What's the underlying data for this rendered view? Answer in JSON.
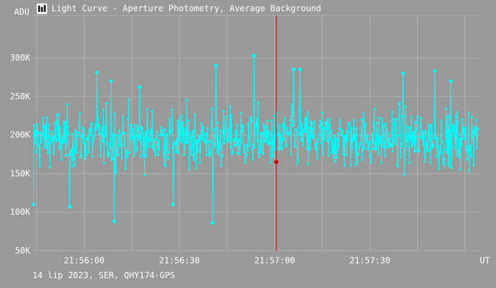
{
  "window": {
    "title": "Light Curve - Aperture Photometry, Average Background",
    "footer": "14 lip 2023, SER, QHY174-GPS",
    "icon": "app-logo-icon"
  },
  "colors": {
    "background": "#999999",
    "grid": "#b4b4b4",
    "series": "#00ffff",
    "cursor": "#cc0000",
    "text": "#ffffff"
  },
  "chart_data": {
    "type": "line",
    "title": "Light Curve - Aperture Photometry, Average Background",
    "ylabel": "ADU",
    "xlabel": "UT",
    "x_tick_labels": [
      "21:56:00",
      "21:56:30",
      "21:57:00",
      "21:57:30"
    ],
    "x_tick_seconds": [
      0,
      30,
      60,
      90
    ],
    "y_tick_labels": [
      "50K",
      "100K",
      "150K",
      "200K",
      "250K",
      "300K"
    ],
    "y_tick_values": [
      50000,
      100000,
      150000,
      200000,
      250000,
      300000
    ],
    "xlim_seconds_from_21_56_00": [
      -16.3,
      124.4
    ],
    "ylim": [
      50000,
      355000
    ],
    "grid": true,
    "cursor": {
      "time_seconds_from_21_56_00": 60.5,
      "value": 165000
    },
    "series": [
      {
        "marker": "dot",
        "sample_interval_seconds": 0.2,
        "summary": {
          "count": 700,
          "mean": 195000,
          "min": 85000,
          "max": 303000
        },
        "highlighted_points": [
          {
            "t": -16.0,
            "v": 110000
          },
          {
            "t": -4.5,
            "v": 107000
          },
          {
            "t": 4.0,
            "v": 281000
          },
          {
            "t": 8.5,
            "v": 270000
          },
          {
            "t": 9.5,
            "v": 88000
          },
          {
            "t": 17.5,
            "v": 262000
          },
          {
            "t": 28.0,
            "v": 110000
          },
          {
            "t": 40.5,
            "v": 86000
          },
          {
            "t": 41.5,
            "v": 290000
          },
          {
            "t": 53.5,
            "v": 303000
          },
          {
            "t": 66.0,
            "v": 285000
          },
          {
            "t": 68.0,
            "v": 285000
          },
          {
            "t": 100.5,
            "v": 280000
          },
          {
            "t": 115.5,
            "v": 270000
          },
          {
            "t": 110.5,
            "v": 283000
          }
        ]
      }
    ]
  }
}
